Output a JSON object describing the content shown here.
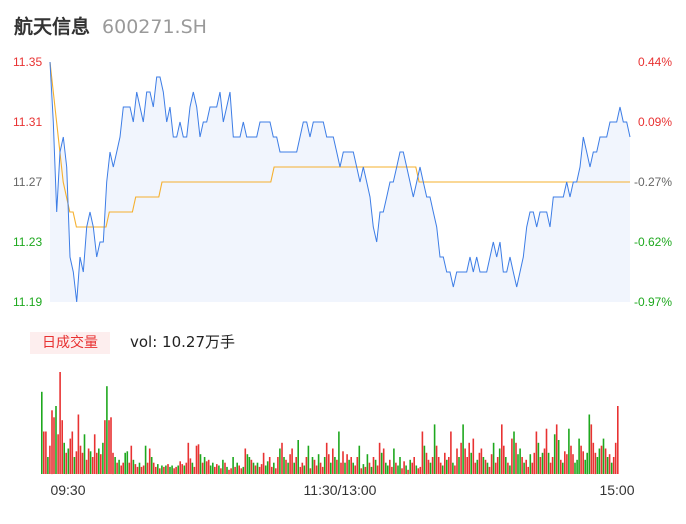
{
  "header": {
    "name": "航天信息",
    "code": "600271.SH"
  },
  "volume": {
    "badge": "日成交量",
    "label": "vol: 10.27万手"
  },
  "colors": {
    "up": "#e83232",
    "down": "#1ea81e",
    "price_line": "#3d7de6",
    "avg_line": "#f5b02e",
    "flat": "#666666"
  },
  "chart_data": {
    "type": "line",
    "price_axis": {
      "ticks": [
        11.35,
        11.31,
        11.27,
        11.23,
        11.19
      ],
      "labels": [
        "11.35",
        "11.31",
        "11.27",
        "11.23",
        "11.19"
      ],
      "ylim": [
        11.19,
        11.35
      ],
      "tick_colors": [
        "up",
        "up",
        "flat",
        "down",
        "down"
      ]
    },
    "pct_axis": {
      "labels": [
        "0.44%",
        "0.09%",
        "-0.27%",
        "-0.62%",
        "-0.97%"
      ],
      "tick_colors": [
        "up",
        "up",
        "flat",
        "down",
        "down"
      ]
    },
    "x_labels": [
      "09:30",
      "11:30/13:00",
      "15:00"
    ],
    "series": [
      {
        "values": [
          11.35,
          11.31,
          11.25,
          11.29,
          11.3,
          11.28,
          11.22,
          11.21,
          11.19,
          11.22,
          11.21,
          11.24,
          11.25,
          11.24,
          11.22,
          11.23,
          11.23,
          11.27,
          11.29,
          11.28,
          11.29,
          11.3,
          11.32,
          11.32,
          11.32,
          11.31,
          11.33,
          11.32,
          11.31,
          11.33,
          11.33,
          11.32,
          11.34,
          11.34,
          11.33,
          11.31,
          11.32,
          11.3,
          11.3,
          11.31,
          11.3,
          11.3,
          11.32,
          11.33,
          11.32,
          11.3,
          11.31,
          11.31,
          11.32,
          11.32,
          11.32,
          11.33,
          11.31,
          11.32,
          11.33,
          11.3,
          11.3,
          11.3,
          11.31,
          11.3,
          11.3,
          11.3,
          11.3,
          11.31,
          11.31,
          11.31,
          11.31,
          11.3,
          11.3,
          11.29,
          11.29,
          11.29,
          11.29,
          11.29,
          11.29,
          11.3,
          11.31,
          11.31,
          11.3,
          11.31,
          11.31,
          11.31,
          11.31,
          11.3,
          11.3,
          11.3,
          11.29,
          11.28,
          11.29,
          11.29,
          11.29,
          11.29,
          11.28,
          11.27,
          11.28,
          11.27,
          11.26,
          11.24,
          11.23,
          11.25,
          11.25,
          11.26,
          11.27,
          11.27,
          11.28,
          11.29,
          11.29,
          11.28,
          11.27,
          11.26,
          11.27,
          11.28,
          11.27,
          11.26,
          11.26,
          11.25,
          11.24,
          11.22,
          11.22,
          11.21,
          11.21,
          11.2,
          11.21,
          11.21,
          11.21,
          11.21,
          11.22,
          11.21,
          11.22,
          11.21,
          11.21,
          11.21,
          11.22,
          11.23,
          11.22,
          11.23,
          11.21,
          11.21,
          11.22,
          11.21,
          11.2,
          11.21,
          11.22,
          11.24,
          11.25,
          11.25,
          11.24,
          11.25,
          11.25,
          11.25,
          11.24,
          11.26,
          11.26,
          11.26,
          11.26,
          11.27,
          11.26,
          11.27,
          11.27,
          11.28,
          11.3,
          11.29,
          11.28,
          11.29,
          11.29,
          11.3,
          11.3,
          11.3,
          11.31,
          11.31,
          11.31,
          11.32,
          11.31,
          11.31,
          11.3
        ]
      },
      {
        "values": [
          11.35,
          11.33,
          11.31,
          11.29,
          11.27,
          11.26,
          11.25,
          11.25,
          11.24,
          11.24,
          11.24,
          11.24,
          11.24,
          11.24,
          11.24,
          11.24,
          11.24,
          11.24,
          11.25,
          11.25,
          11.25,
          11.25,
          11.25,
          11.25,
          11.25,
          11.25,
          11.26,
          11.26,
          11.26,
          11.26,
          11.26,
          11.26,
          11.26,
          11.26,
          11.27,
          11.27,
          11.27,
          11.27,
          11.27,
          11.27,
          11.27,
          11.27,
          11.27,
          11.27,
          11.27,
          11.27,
          11.27,
          11.27,
          11.27,
          11.27,
          11.27,
          11.27,
          11.27,
          11.27,
          11.27,
          11.27,
          11.27,
          11.27,
          11.27,
          11.27,
          11.27,
          11.27,
          11.27,
          11.27,
          11.27,
          11.27,
          11.27,
          11.27,
          11.28,
          11.28,
          11.28,
          11.28,
          11.28,
          11.28,
          11.28,
          11.28,
          11.28,
          11.28,
          11.28,
          11.28,
          11.28,
          11.28,
          11.28,
          11.28,
          11.28,
          11.28,
          11.28,
          11.28,
          11.28,
          11.28,
          11.28,
          11.28,
          11.28,
          11.28,
          11.28,
          11.28,
          11.28,
          11.28,
          11.28,
          11.28,
          11.28,
          11.28,
          11.28,
          11.28,
          11.28,
          11.28,
          11.28,
          11.28,
          11.28,
          11.28,
          11.28,
          11.28,
          11.27,
          11.27,
          11.27,
          11.27,
          11.27,
          11.27,
          11.27,
          11.27,
          11.27,
          11.27,
          11.27,
          11.27,
          11.27,
          11.27,
          11.27,
          11.27,
          11.27,
          11.27,
          11.27,
          11.27,
          11.27,
          11.27,
          11.27,
          11.27,
          11.27,
          11.27,
          11.27,
          11.27,
          11.27,
          11.27,
          11.27,
          11.27,
          11.27,
          11.27,
          11.27,
          11.27,
          11.27,
          11.27,
          11.27,
          11.27,
          11.27,
          11.27,
          11.27,
          11.27,
          11.27,
          11.27,
          11.27,
          11.27,
          11.27,
          11.27,
          11.27,
          11.27,
          11.27,
          11.27,
          11.27,
          11.27,
          11.27,
          11.27,
          11.27,
          11.27,
          11.27,
          11.27,
          11.27,
          11.27,
          11.27
        ]
      }
    ],
    "volume_bars": [
      [
        58,
        "down"
      ],
      [
        30,
        "up"
      ],
      [
        30,
        "up"
      ],
      [
        12,
        "down"
      ],
      [
        20,
        "up"
      ],
      [
        45,
        "up"
      ],
      [
        40,
        "up"
      ],
      [
        48,
        "down"
      ],
      [
        28,
        "up"
      ],
      [
        72,
        "up"
      ],
      [
        38,
        "up"
      ],
      [
        22,
        "down"
      ],
      [
        15,
        "up"
      ],
      [
        18,
        "down"
      ],
      [
        25,
        "up"
      ],
      [
        30,
        "up"
      ],
      [
        12,
        "down"
      ],
      [
        16,
        "up"
      ],
      [
        42,
        "up"
      ],
      [
        20,
        "up"
      ],
      [
        15,
        "up"
      ],
      [
        28,
        "down"
      ],
      [
        10,
        "up"
      ],
      [
        18,
        "up"
      ],
      [
        16,
        "down"
      ],
      [
        12,
        "up"
      ],
      [
        28,
        "up"
      ],
      [
        15,
        "up"
      ],
      [
        18,
        "down"
      ],
      [
        14,
        "up"
      ],
      [
        22,
        "down"
      ],
      [
        38,
        "up"
      ],
      [
        62,
        "down"
      ],
      [
        38,
        "up"
      ],
      [
        40,
        "up"
      ],
      [
        15,
        "up"
      ],
      [
        12,
        "down"
      ],
      [
        8,
        "up"
      ],
      [
        10,
        "down"
      ],
      [
        6,
        "up"
      ],
      [
        8,
        "up"
      ],
      [
        15,
        "down"
      ],
      [
        16,
        "down"
      ],
      [
        8,
        "up"
      ],
      [
        20,
        "up"
      ],
      [
        10,
        "down"
      ],
      [
        7,
        "up"
      ],
      [
        5,
        "up"
      ],
      [
        8,
        "down"
      ],
      [
        5,
        "up"
      ],
      [
        6,
        "up"
      ],
      [
        20,
        "down"
      ],
      [
        8,
        "up"
      ],
      [
        18,
        "up"
      ],
      [
        12,
        "down"
      ],
      [
        8,
        "up"
      ],
      [
        5,
        "up"
      ],
      [
        7,
        "down"
      ],
      [
        4,
        "up"
      ],
      [
        6,
        "down"
      ],
      [
        5,
        "up"
      ],
      [
        6,
        "down"
      ],
      [
        7,
        "up"
      ],
      [
        5,
        "down"
      ],
      [
        6,
        "down"
      ],
      [
        4,
        "up"
      ],
      [
        5,
        "up"
      ],
      [
        6,
        "down"
      ],
      [
        9,
        "up"
      ],
      [
        7,
        "up"
      ],
      [
        6,
        "down"
      ],
      [
        8,
        "up"
      ],
      [
        22,
        "up"
      ],
      [
        11,
        "up"
      ],
      [
        8,
        "down"
      ],
      [
        5,
        "up"
      ],
      [
        20,
        "up"
      ],
      [
        21,
        "up"
      ],
      [
        14,
        "down"
      ],
      [
        8,
        "up"
      ],
      [
        12,
        "down"
      ],
      [
        9,
        "up"
      ],
      [
        10,
        "up"
      ],
      [
        6,
        "down"
      ],
      [
        8,
        "down"
      ],
      [
        5,
        "up"
      ],
      [
        7,
        "up"
      ],
      [
        6,
        "down"
      ],
      [
        4,
        "up"
      ],
      [
        10,
        "down"
      ],
      [
        8,
        "up"
      ],
      [
        5,
        "down"
      ],
      [
        3,
        "up"
      ],
      [
        4,
        "up"
      ],
      [
        12,
        "down"
      ],
      [
        5,
        "up"
      ],
      [
        8,
        "down"
      ],
      [
        6,
        "up"
      ],
      [
        4,
        "up"
      ],
      [
        5,
        "down"
      ],
      [
        18,
        "up"
      ],
      [
        14,
        "down"
      ],
      [
        12,
        "down"
      ],
      [
        10,
        "up"
      ],
      [
        8,
        "down"
      ],
      [
        6,
        "up"
      ],
      [
        8,
        "down"
      ],
      [
        5,
        "up"
      ],
      [
        7,
        "up"
      ],
      [
        15,
        "up"
      ],
      [
        6,
        "down"
      ],
      [
        9,
        "down"
      ],
      [
        12,
        "up"
      ],
      [
        5,
        "up"
      ],
      [
        8,
        "down"
      ],
      [
        4,
        "up"
      ],
      [
        12,
        "up"
      ],
      [
        18,
        "down"
      ],
      [
        22,
        "up"
      ],
      [
        12,
        "down"
      ],
      [
        10,
        "up"
      ],
      [
        8,
        "down"
      ],
      [
        14,
        "up"
      ],
      [
        18,
        "up"
      ],
      [
        8,
        "down"
      ],
      [
        12,
        "up"
      ],
      [
        24,
        "down"
      ],
      [
        5,
        "up"
      ],
      [
        8,
        "up"
      ],
      [
        6,
        "down"
      ],
      [
        12,
        "up"
      ],
      [
        20,
        "down"
      ],
      [
        4,
        "up"
      ],
      [
        12,
        "down"
      ],
      [
        10,
        "up"
      ],
      [
        6,
        "up"
      ],
      [
        14,
        "down"
      ],
      [
        8,
        "up"
      ],
      [
        5,
        "up"
      ],
      [
        12,
        "down"
      ],
      [
        22,
        "up"
      ],
      [
        14,
        "up"
      ],
      [
        8,
        "down"
      ],
      [
        18,
        "up"
      ],
      [
        12,
        "down"
      ],
      [
        10,
        "up"
      ],
      [
        30,
        "down"
      ],
      [
        8,
        "up"
      ],
      [
        16,
        "up"
      ],
      [
        8,
        "down"
      ],
      [
        14,
        "up"
      ],
      [
        10,
        "down"
      ],
      [
        12,
        "up"
      ],
      [
        8,
        "down"
      ],
      [
        6,
        "up"
      ],
      [
        12,
        "up"
      ],
      [
        20,
        "down"
      ],
      [
        4,
        "up"
      ],
      [
        7,
        "down"
      ],
      [
        5,
        "up"
      ],
      [
        14,
        "down"
      ],
      [
        8,
        "up"
      ],
      [
        5,
        "down"
      ],
      [
        12,
        "up"
      ],
      [
        10,
        "down"
      ],
      [
        6,
        "up"
      ],
      [
        22,
        "up"
      ],
      [
        15,
        "down"
      ],
      [
        18,
        "up"
      ],
      [
        8,
        "down"
      ],
      [
        6,
        "down"
      ],
      [
        10,
        "up"
      ],
      [
        5,
        "up"
      ],
      [
        18,
        "down"
      ],
      [
        8,
        "up"
      ],
      [
        6,
        "down"
      ],
      [
        12,
        "down"
      ],
      [
        4,
        "up"
      ],
      [
        9,
        "up"
      ],
      [
        6,
        "down"
      ],
      [
        3,
        "up"
      ],
      [
        10,
        "down"
      ],
      [
        8,
        "up"
      ],
      [
        12,
        "up"
      ],
      [
        6,
        "down"
      ],
      [
        4,
        "up"
      ],
      [
        5,
        "up"
      ],
      [
        30,
        "up"
      ],
      [
        20,
        "down"
      ],
      [
        15,
        "up"
      ],
      [
        10,
        "up"
      ],
      [
        8,
        "down"
      ],
      [
        12,
        "up"
      ],
      [
        35,
        "down"
      ],
      [
        20,
        "up"
      ],
      [
        12,
        "up"
      ],
      [
        8,
        "up"
      ],
      [
        6,
        "down"
      ],
      [
        15,
        "up"
      ],
      [
        10,
        "down"
      ],
      [
        12,
        "up"
      ],
      [
        30,
        "up"
      ],
      [
        8,
        "down"
      ],
      [
        6,
        "up"
      ],
      [
        18,
        "up"
      ],
      [
        12,
        "down"
      ],
      [
        22,
        "up"
      ],
      [
        35,
        "down"
      ],
      [
        18,
        "up"
      ],
      [
        12,
        "up"
      ],
      [
        22,
        "up"
      ],
      [
        15,
        "down"
      ],
      [
        25,
        "up"
      ],
      [
        8,
        "up"
      ],
      [
        10,
        "down"
      ],
      [
        15,
        "up"
      ],
      [
        18,
        "up"
      ],
      [
        12,
        "down"
      ],
      [
        10,
        "up"
      ],
      [
        8,
        "down"
      ],
      [
        5,
        "up"
      ],
      [
        14,
        "up"
      ],
      [
        22,
        "down"
      ],
      [
        8,
        "up"
      ],
      [
        12,
        "up"
      ],
      [
        18,
        "down"
      ],
      [
        35,
        "up"
      ],
      [
        20,
        "up"
      ],
      [
        12,
        "down"
      ],
      [
        8,
        "up"
      ],
      [
        6,
        "down"
      ],
      [
        25,
        "up"
      ],
      [
        30,
        "down"
      ],
      [
        22,
        "up"
      ],
      [
        14,
        "down"
      ],
      [
        18,
        "down"
      ],
      [
        12,
        "up"
      ],
      [
        8,
        "down"
      ],
      [
        10,
        "up"
      ],
      [
        5,
        "up"
      ],
      [
        14,
        "down"
      ],
      [
        8,
        "up"
      ],
      [
        15,
        "up"
      ],
      [
        30,
        "up"
      ],
      [
        22,
        "down"
      ],
      [
        12,
        "up"
      ],
      [
        15,
        "down"
      ],
      [
        18,
        "up"
      ],
      [
        32,
        "up"
      ],
      [
        15,
        "down"
      ],
      [
        8,
        "up"
      ],
      [
        12,
        "up"
      ],
      [
        28,
        "down"
      ],
      [
        35,
        "up"
      ],
      [
        24,
        "down"
      ],
      [
        10,
        "up"
      ],
      [
        8,
        "down"
      ],
      [
        16,
        "up"
      ],
      [
        14,
        "up"
      ],
      [
        32,
        "down"
      ],
      [
        20,
        "up"
      ],
      [
        14,
        "up"
      ],
      [
        8,
        "down"
      ],
      [
        10,
        "down"
      ],
      [
        25,
        "down"
      ],
      [
        20,
        "up"
      ],
      [
        16,
        "up"
      ],
      [
        10,
        "down"
      ],
      [
        15,
        "down"
      ],
      [
        42,
        "down"
      ],
      [
        35,
        "up"
      ],
      [
        22,
        "up"
      ],
      [
        15,
        "up"
      ],
      [
        12,
        "down"
      ],
      [
        18,
        "down"
      ],
      [
        20,
        "up"
      ],
      [
        25,
        "down"
      ],
      [
        18,
        "up"
      ],
      [
        12,
        "down"
      ],
      [
        14,
        "up"
      ],
      [
        8,
        "down"
      ],
      [
        12,
        "up"
      ],
      [
        22,
        "up"
      ],
      [
        48,
        "up"
      ]
    ]
  }
}
